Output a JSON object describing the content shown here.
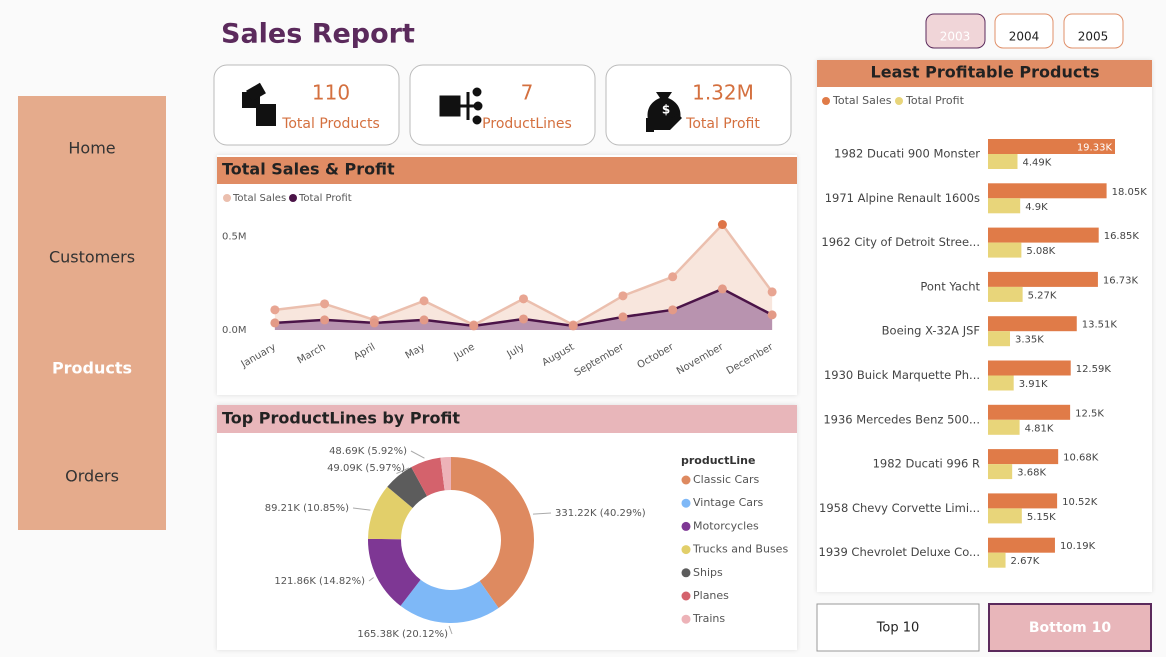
{
  "nav": [
    "Home",
    "Customers",
    "Products",
    "Orders"
  ],
  "header": {
    "title": "Sales Report",
    "years": [
      "2003",
      "2004",
      "2005"
    ]
  },
  "kpis": [
    {
      "value": "110",
      "label": "Total Products"
    },
    {
      "value": "7",
      "label": "ProductLines"
    },
    {
      "value": "1.32M",
      "label": "Total Profit"
    }
  ],
  "chart_data": [
    {
      "type": "area",
      "title": "Total Sales & Profit",
      "categories": [
        "January",
        "March",
        "April",
        "May",
        "June",
        "July",
        "August",
        "September",
        "October",
        "November",
        "December"
      ],
      "series": [
        {
          "name": "Total Sales",
          "color": "#EBBFAE",
          "values": [
            0.108,
            0.14,
            0.054,
            0.156,
            0.027,
            0.167,
            0.027,
            0.183,
            0.285,
            0.565,
            0.204
          ]
        },
        {
          "name": "Total Profit",
          "color": "#4B1448",
          "values": [
            0.038,
            0.054,
            0.038,
            0.054,
            0.022,
            0.059,
            0.022,
            0.07,
            0.108,
            0.22,
            0.081
          ]
        }
      ],
      "ylim": [
        0,
        0.6
      ],
      "yticks": [
        {
          "value": 0,
          "label": "0.0M"
        },
        {
          "value": 0.5,
          "label": "0.5M"
        }
      ]
    },
    {
      "type": "donut",
      "title": "Top ProductLines by Profit",
      "legend_title": "productLine",
      "categories": [
        "Classic Cars",
        "Vintage Cars",
        "Motorcycles",
        "Trucks and Buses",
        "Ships",
        "Planes",
        "Trains"
      ],
      "values": [
        331.22,
        165.38,
        121.86,
        89.21,
        49.09,
        48.69,
        16.7
      ],
      "value_labels": [
        "331.22K (40.29%)",
        "165.38K (20.12%)",
        "121.86K (14.82%)",
        "89.21K (10.85%)",
        "49.09K (5.97%)",
        "48.69K (5.92%)",
        null
      ],
      "colors": [
        "#DE8A60",
        "#7EB8F7",
        "#7E3794",
        "#E2CF6A",
        "#5C5C5C",
        "#D4626C",
        "#EDB3B8"
      ]
    },
    {
      "type": "hbar",
      "title": "Least Profitable Products",
      "categories": [
        "1982 Ducati 900 Monster",
        "1971 Alpine Renault 1600s",
        "1962 City of Detroit Stree...",
        "Pont Yacht",
        "Boeing X-32A JSF",
        "1930 Buick Marquette Ph...",
        "1936 Mercedes Benz 500...",
        "1982 Ducati 996 R",
        "1958 Chevy Corvette Limi...",
        "1939 Chevrolet Deluxe Co..."
      ],
      "series": [
        {
          "name": "Total Sales",
          "color": "#E07B48",
          "values": [
            19.33,
            18.05,
            16.85,
            16.73,
            13.51,
            12.59,
            12.5,
            10.68,
            10.52,
            10.19
          ],
          "value_labels": [
            "19.33K",
            "18.05K",
            "16.85K",
            "16.73K",
            "13.51K",
            "12.59K",
            "12.5K",
            "10.68K",
            "10.52K",
            "10.19K"
          ]
        },
        {
          "name": "Total Profit",
          "color": "#E8D57A",
          "values": [
            4.49,
            4.9,
            5.08,
            5.27,
            3.35,
            3.91,
            4.81,
            3.68,
            5.15,
            2.67
          ],
          "value_labels": [
            "4.49K",
            "4.9K",
            "5.08K",
            "5.27K",
            "3.35K",
            "3.91K",
            "4.81K",
            "3.68K",
            "5.15K",
            "2.67K"
          ]
        }
      ]
    }
  ],
  "buttons": [
    "Top 10",
    "Bottom 10"
  ]
}
